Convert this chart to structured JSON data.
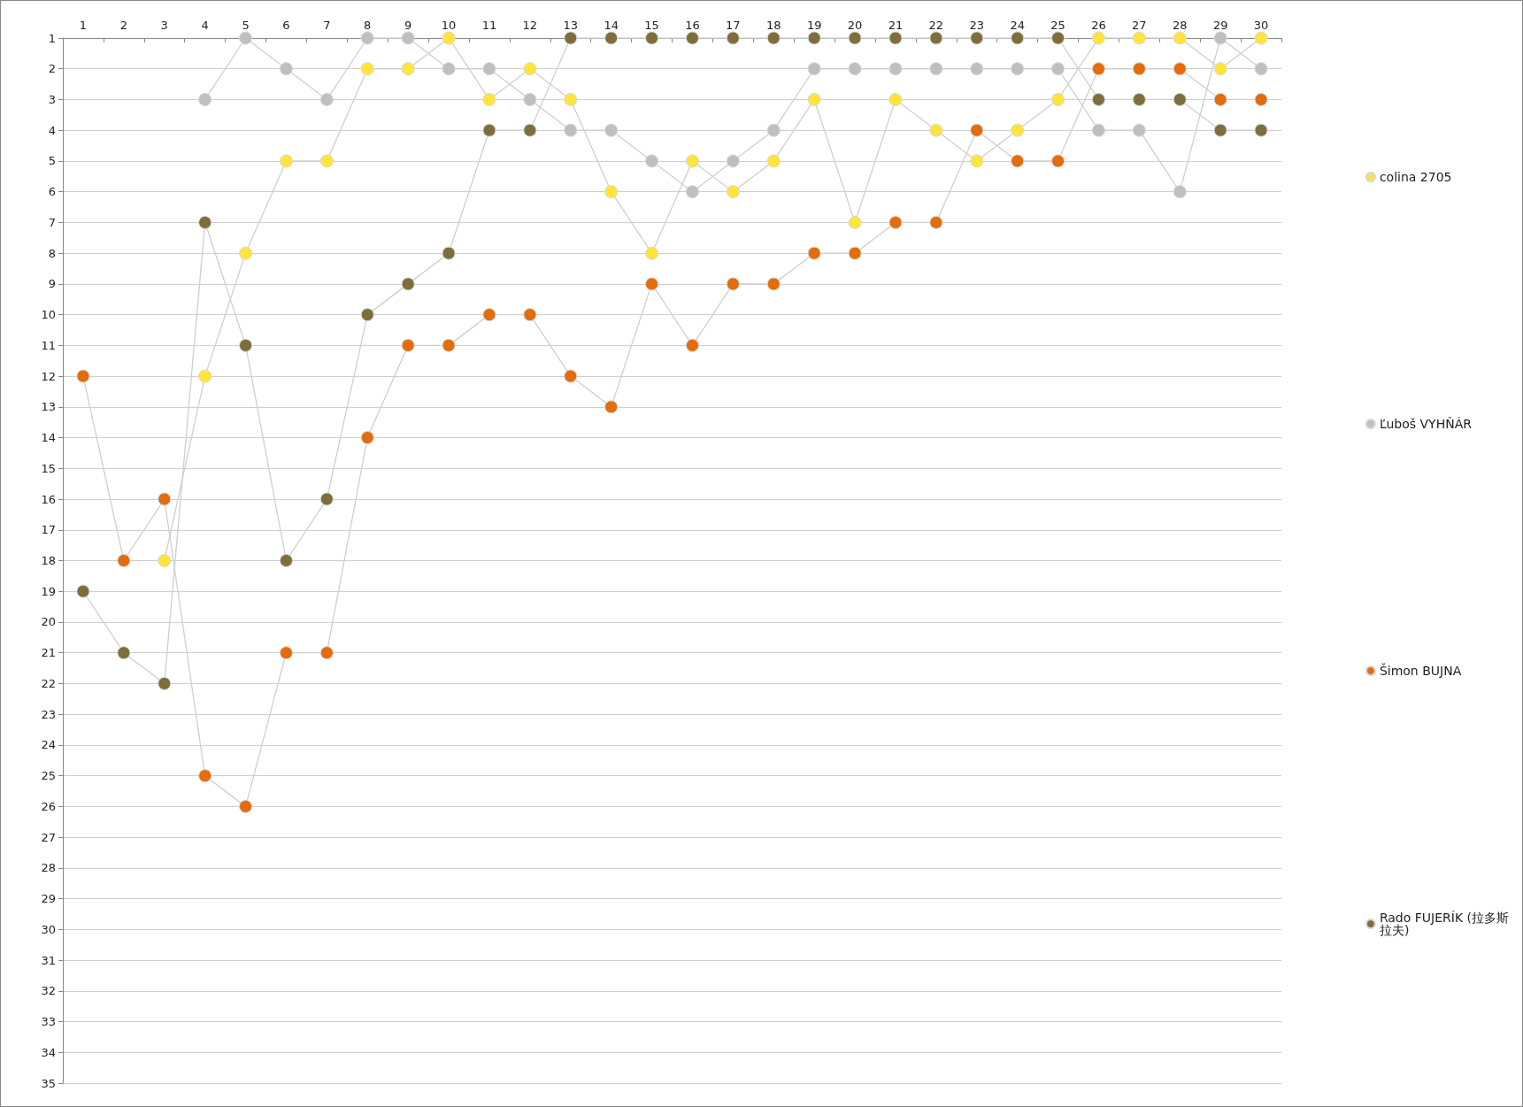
{
  "chart_data": {
    "type": "line",
    "categories": [
      "1",
      "2",
      "3",
      "4",
      "5",
      "6",
      "7",
      "8",
      "9",
      "10",
      "11",
      "12",
      "13",
      "14",
      "15",
      "16",
      "17",
      "18",
      "19",
      "20",
      "21",
      "22",
      "23",
      "24",
      "25",
      "26",
      "27",
      "28",
      "29",
      "30"
    ],
    "ylim": [
      35,
      1
    ],
    "yticks": [
      1,
      2,
      3,
      4,
      5,
      6,
      7,
      8,
      9,
      10,
      11,
      12,
      13,
      14,
      15,
      16,
      17,
      18,
      19,
      20,
      21,
      22,
      23,
      24,
      25,
      26,
      27,
      28,
      29,
      30,
      31,
      32,
      33,
      34,
      35
    ],
    "grid": "y",
    "legend": "right",
    "marker": "circle",
    "line_style": "solid",
    "series": [
      {
        "name": "colina 2705",
        "color": "#ffe53b",
        "values": [
          null,
          null,
          18,
          12,
          8,
          5,
          5,
          2,
          2,
          1,
          3,
          2,
          3,
          6,
          8,
          5,
          6,
          5,
          3,
          7,
          3,
          4,
          5,
          4,
          3,
          1,
          1,
          1,
          2,
          1
        ]
      },
      {
        "name": "Ľuboš VYHŇÁR",
        "color": "#bfbfbf",
        "values": [
          null,
          null,
          null,
          3,
          1,
          2,
          3,
          1,
          1,
          2,
          2,
          3,
          4,
          4,
          5,
          6,
          5,
          4,
          2,
          2,
          2,
          2,
          2,
          2,
          2,
          4,
          4,
          6,
          1,
          2
        ]
      },
      {
        "name": "Šimon BUJNA",
        "color": "#e46c0a",
        "values": [
          12,
          18,
          16,
          25,
          26,
          21,
          21,
          14,
          11,
          11,
          10,
          10,
          12,
          13,
          9,
          11,
          9,
          9,
          8,
          8,
          7,
          7,
          4,
          5,
          5,
          2,
          2,
          2,
          3,
          3
        ]
      },
      {
        "name": "Rado FUJERÍK (拉多斯拉夫)",
        "color": "#7d6e3c",
        "values": [
          19,
          21,
          22,
          7,
          11,
          18,
          16,
          10,
          9,
          8,
          4,
          4,
          1,
          1,
          1,
          1,
          1,
          1,
          1,
          1,
          1,
          1,
          1,
          1,
          1,
          3,
          3,
          3,
          4,
          4
        ]
      }
    ]
  }
}
